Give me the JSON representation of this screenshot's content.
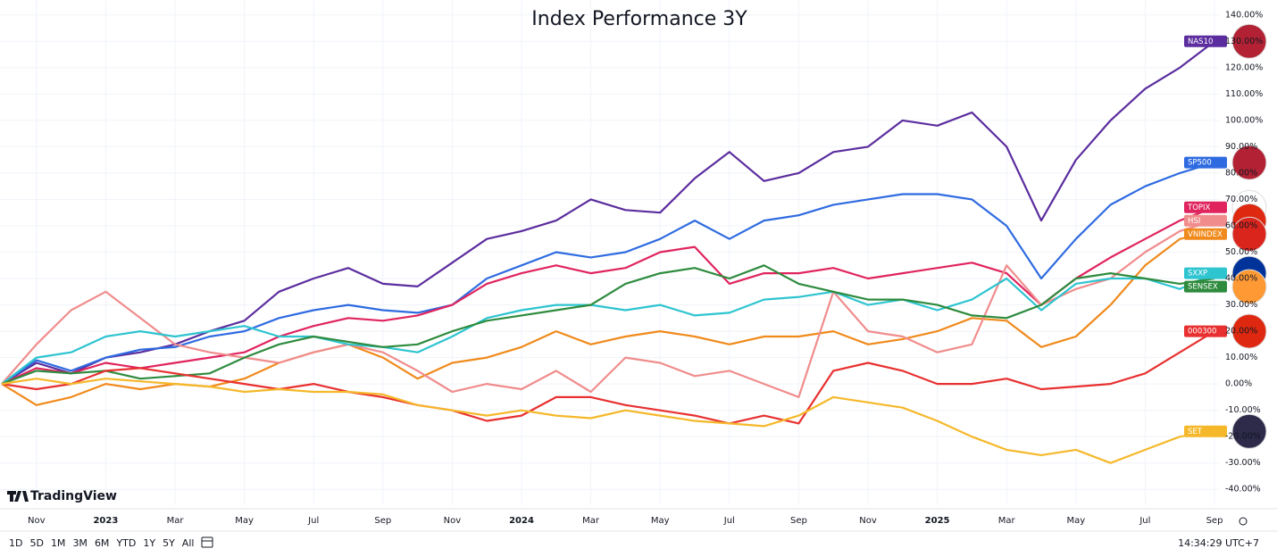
{
  "chart_data": {
    "type": "line",
    "title": "Index Performance 3Y",
    "categories": [
      null,
      "Nov",
      null,
      "2023",
      null,
      "Mar",
      null,
      "May",
      null,
      "Jul",
      null,
      "Sep",
      null,
      "Nov",
      null,
      "2024",
      null,
      "Mar",
      null,
      "May",
      null,
      "Jul",
      null,
      "Sep",
      null,
      "Nov",
      null,
      "2025",
      null,
      "Mar",
      null,
      "May",
      null,
      "Jul",
      null,
      "Sep"
    ],
    "series": [
      {
        "name": "NAS10",
        "color": "#5b2d9e",
        "values": [
          0,
          8,
          4,
          10,
          12,
          15,
          20,
          24,
          35,
          40,
          44,
          38,
          37,
          46,
          55,
          58,
          62,
          70,
          66,
          65,
          78,
          88,
          77,
          80,
          88,
          90,
          100,
          98,
          103,
          90,
          62,
          85,
          100,
          112,
          120,
          130
        ]
      },
      {
        "name": "SP500",
        "color": "#2f6be0",
        "values": [
          0,
          9,
          5,
          10,
          13,
          14,
          18,
          20,
          25,
          28,
          30,
          28,
          27,
          30,
          40,
          45,
          50,
          48,
          50,
          55,
          62,
          55,
          62,
          64,
          68,
          70,
          72,
          72,
          70,
          60,
          40,
          55,
          68,
          75,
          80,
          84
        ]
      },
      {
        "name": "TOPIX",
        "color": "#e0245e",
        "values": [
          0,
          6,
          4,
          8,
          6,
          8,
          10,
          12,
          18,
          22,
          25,
          24,
          26,
          30,
          38,
          42,
          45,
          42,
          44,
          50,
          52,
          38,
          42,
          42,
          44,
          40,
          42,
          44,
          46,
          42,
          30,
          40,
          48,
          55,
          62,
          67
        ]
      },
      {
        "name": "VNINDEX",
        "color": "#f08a1c",
        "values": [
          0,
          -8,
          -5,
          0,
          -2,
          0,
          -1,
          2,
          8,
          12,
          15,
          10,
          2,
          8,
          10,
          14,
          20,
          15,
          18,
          20,
          18,
          15,
          18,
          18,
          20,
          15,
          17,
          20,
          25,
          24,
          14,
          18,
          30,
          45,
          55,
          58
        ]
      },
      {
        "name": "HSI",
        "color": "#f08c8c",
        "values": [
          0,
          15,
          28,
          35,
          25,
          15,
          12,
          10,
          8,
          12,
          15,
          12,
          5,
          -3,
          0,
          -2,
          5,
          -3,
          10,
          8,
          3,
          5,
          0,
          -5,
          35,
          20,
          18,
          12,
          15,
          45,
          30,
          36,
          40,
          50,
          58,
          62
        ]
      },
      {
        "name": "SXXP",
        "color": "#2ec4d0",
        "values": [
          0,
          10,
          12,
          18,
          20,
          18,
          20,
          22,
          18,
          18,
          15,
          14,
          12,
          18,
          25,
          28,
          30,
          30,
          28,
          30,
          26,
          27,
          32,
          33,
          35,
          30,
          32,
          28,
          32,
          40,
          28,
          38,
          40,
          40,
          36,
          42
        ]
      },
      {
        "name": "SENSEX",
        "color": "#2e8b3e",
        "values": [
          0,
          5,
          4,
          5,
          2,
          3,
          4,
          10,
          15,
          18,
          16,
          14,
          15,
          20,
          24,
          26,
          28,
          30,
          38,
          42,
          44,
          40,
          45,
          38,
          35,
          32,
          32,
          30,
          26,
          25,
          30,
          40,
          42,
          40,
          38,
          40
        ]
      },
      {
        "name": "000300",
        "color": "#e83030",
        "values": [
          0,
          -2,
          0,
          5,
          6,
          4,
          2,
          0,
          -2,
          0,
          -3,
          -5,
          -8,
          -10,
          -14,
          -12,
          -5,
          -5,
          -8,
          -10,
          -12,
          -15,
          -12,
          -15,
          5,
          8,
          5,
          0,
          0,
          2,
          -2,
          -1,
          0,
          4,
          12,
          20
        ]
      },
      {
        "name": "SET",
        "color": "#f5b82a",
        "values": [
          0,
          2,
          0,
          2,
          1,
          0,
          -1,
          -3,
          -2,
          -3,
          -3,
          -4,
          -8,
          -10,
          -12,
          -10,
          -12,
          -13,
          -10,
          -12,
          -14,
          -15,
          -16,
          -12,
          -5,
          -7,
          -9,
          -14,
          -20,
          -25,
          -27,
          -25,
          -30,
          -25,
          -20,
          -18
        ]
      }
    ],
    "ylim": [
      -45,
      145
    ],
    "yticks": [
      {
        "value": -40,
        "label": "-40.00%"
      },
      {
        "value": -30,
        "label": "-30.00%"
      },
      {
        "value": -20,
        "label": "-20.00%"
      },
      {
        "value": -10,
        "label": "-10.00%"
      },
      {
        "value": 0,
        "label": "0.00%"
      },
      {
        "value": 10,
        "label": "10.00%"
      },
      {
        "value": 20,
        "label": "20.00%"
      },
      {
        "value": 30,
        "label": "30.00%"
      },
      {
        "value": 40,
        "label": "40.00%"
      },
      {
        "value": 50,
        "label": "50.00%"
      },
      {
        "value": 60,
        "label": "60.00%"
      },
      {
        "value": 70,
        "label": "70.00%"
      },
      {
        "value": 80,
        "label": "80.00%"
      },
      {
        "value": 90,
        "label": "90.00%"
      },
      {
        "value": 100,
        "label": "100.00%"
      },
      {
        "value": 110,
        "label": "110.00%"
      },
      {
        "value": 120,
        "label": "120.00%"
      },
      {
        "value": 130,
        "label": "130.00%"
      },
      {
        "value": 140,
        "label": "140.00%"
      }
    ],
    "grid": true
  },
  "ui": {
    "logo": "TradingView",
    "ranges": [
      "1D",
      "5D",
      "1M",
      "3M",
      "6M",
      "YTD",
      "1Y",
      "5Y",
      "All"
    ],
    "clock": "14:34:29 UTC+7"
  }
}
